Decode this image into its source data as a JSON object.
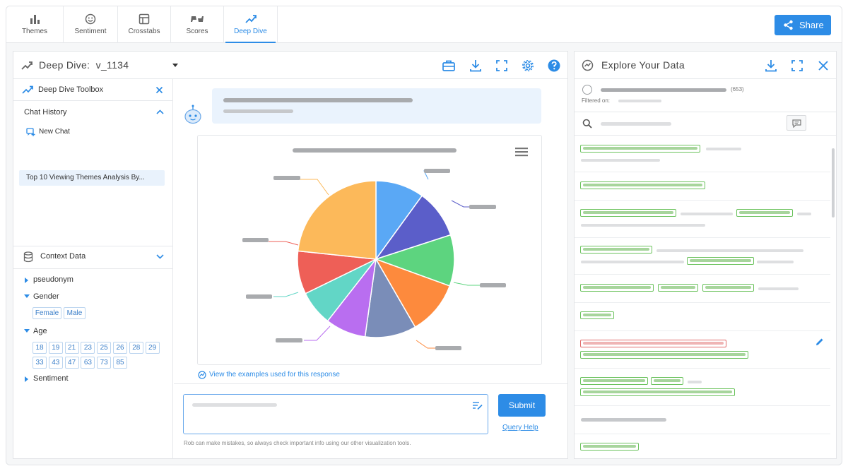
{
  "top_tabs": [
    {
      "label": "Themes",
      "icon": "bar-chart-icon",
      "active": false
    },
    {
      "label": "Sentiment",
      "icon": "smiley-icon",
      "active": false
    },
    {
      "label": "Crosstabs",
      "icon": "table-icon",
      "active": false
    },
    {
      "label": "Scores",
      "icon": "thumbs-icon",
      "active": false
    },
    {
      "label": "Deep Dive",
      "icon": "deep-dive-icon",
      "active": true
    }
  ],
  "share_label": "Share",
  "deep_dive": {
    "title": "Deep Dive:",
    "version": "v_1134"
  },
  "toolbox": {
    "title": "Deep Dive Toolbox",
    "chat_history_label": "Chat History",
    "new_chat_label": "New Chat",
    "chat_items": [
      "Top 10 Viewing Themes Analysis By..."
    ]
  },
  "context": {
    "title": "Context Data",
    "fields": {
      "pseudonym": "pseudonym",
      "gender": "Gender",
      "age": "Age",
      "sentiment": "Sentiment"
    },
    "gender_values": [
      "Female",
      "Male"
    ],
    "age_values": [
      "18",
      "19",
      "21",
      "23",
      "25",
      "26",
      "28",
      "29",
      "33",
      "43",
      "47",
      "63",
      "73",
      "85"
    ]
  },
  "chat": {
    "view_examples_link": "View the examples used for this response",
    "submit_label": "Submit",
    "query_help_label": "Query Help",
    "disclaimer": "Rob can make mistakes, so always check important info using our other visualization tools."
  },
  "pie_colors": [
    "#5aa8f5",
    "#5b5ec9",
    "#5dd47f",
    "#fd8a3d",
    "#7a8db8",
    "#b96ef0",
    "#62d6c6",
    "#ee5f57",
    "#fcb95a"
  ],
  "explore": {
    "title": "Explore Your Data",
    "count": "(653)",
    "filtered_label": "Filtered on:"
  }
}
